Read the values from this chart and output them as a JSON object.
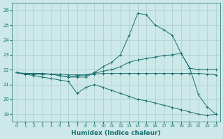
{
  "xlabel": "Humidex (Indice chaleur)",
  "background_color": "#cce8e8",
  "grid_color": "#aacccc",
  "line_color": "#1a7070",
  "xlim": [
    -0.5,
    23.5
  ],
  "ylim": [
    18.5,
    26.5
  ],
  "yticks": [
    19,
    20,
    21,
    22,
    23,
    24,
    25,
    26
  ],
  "xticks": [
    0,
    1,
    2,
    3,
    4,
    5,
    6,
    7,
    8,
    9,
    10,
    11,
    12,
    13,
    14,
    15,
    16,
    17,
    18,
    19,
    20,
    21,
    22,
    23
  ],
  "hours": [
    0,
    1,
    2,
    3,
    4,
    5,
    6,
    7,
    8,
    9,
    10,
    11,
    12,
    13,
    14,
    15,
    16,
    17,
    18,
    19,
    20,
    21,
    22,
    23
  ],
  "line_peak": [
    21.8,
    21.7,
    21.7,
    21.7,
    21.7,
    21.6,
    21.5,
    21.5,
    21.5,
    21.8,
    22.2,
    22.5,
    23.0,
    24.3,
    25.8,
    25.7,
    25.0,
    24.7,
    24.3,
    23.1,
    22.1,
    20.3,
    19.5,
    19.0
  ],
  "line_avg": [
    21.8,
    21.7,
    21.7,
    21.7,
    21.7,
    21.6,
    21.5,
    21.6,
    21.65,
    21.75,
    21.9,
    22.0,
    22.2,
    22.5,
    22.65,
    22.75,
    22.85,
    22.95,
    23.0,
    23.1,
    22.1,
    22.0,
    22.0,
    22.0
  ],
  "line_flat": [
    21.8,
    21.75,
    21.75,
    21.75,
    21.7,
    21.7,
    21.65,
    21.65,
    21.65,
    21.7,
    21.75,
    21.75,
    21.75,
    21.75,
    21.75,
    21.75,
    21.75,
    21.75,
    21.75,
    21.75,
    21.75,
    21.75,
    21.7,
    21.65
  ],
  "line_drop": [
    21.8,
    21.7,
    21.6,
    21.5,
    21.4,
    21.3,
    21.2,
    20.4,
    20.8,
    21.0,
    20.8,
    20.6,
    20.4,
    20.2,
    20.0,
    19.9,
    19.75,
    19.6,
    19.45,
    19.3,
    19.15,
    19.0,
    18.9,
    19.0
  ]
}
